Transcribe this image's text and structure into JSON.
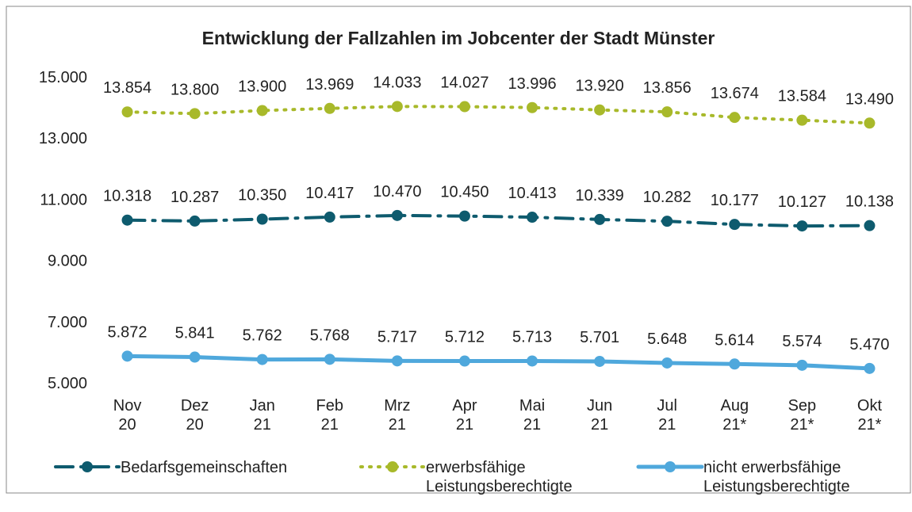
{
  "chart_data": {
    "type": "line",
    "title": "Entwicklung der Fallzahlen im Jobcenter der Stadt Münster",
    "categories": [
      "Nov 20",
      "Dez 20",
      "Jan 21",
      "Feb 21",
      "Mrz 21",
      "Apr 21",
      "Mai 21",
      "Jun 21",
      "Jul 21",
      "Aug 21*",
      "Sep 21*",
      "Okt 21*"
    ],
    "ylim": [
      5000,
      15000
    ],
    "yticks": [
      {
        "value": 5000,
        "label": "5.000"
      },
      {
        "value": 7000,
        "label": "7.000"
      },
      {
        "value": 9000,
        "label": "9.000"
      },
      {
        "value": 11000,
        "label": "11.000"
      },
      {
        "value": 13000,
        "label": "13.000"
      },
      {
        "value": 15000,
        "label": "15.000"
      }
    ],
    "grid": false,
    "legend": "bottom",
    "series": [
      {
        "name": "Bedarfsgemeinschaften",
        "color": "#0e5b6e",
        "style": "dashdot",
        "values": [
          10318,
          10287,
          10350,
          10417,
          10470,
          10450,
          10413,
          10339,
          10282,
          10177,
          10127,
          10138
        ],
        "value_labels": [
          "10.318",
          "10.287",
          "10.350",
          "10.417",
          "10.470",
          "10.450",
          "10.413",
          "10.339",
          "10.282",
          "10.177",
          "10.127",
          "10.138"
        ]
      },
      {
        "name": "erwerbsfähige Leistungsberechtigte",
        "color": "#a8b92a",
        "style": "dotted",
        "values": [
          13854,
          13800,
          13900,
          13969,
          14033,
          14027,
          13996,
          13920,
          13856,
          13674,
          13584,
          13490
        ],
        "value_labels": [
          "13.854",
          "13.800",
          "13.900",
          "13.969",
          "14.033",
          "14.027",
          "13.996",
          "13.920",
          "13.856",
          "13.674",
          "13.584",
          "13.490"
        ]
      },
      {
        "name": "nicht erwerbsfähige Leistungsberechtigte",
        "color": "#4fa8dc",
        "style": "solid",
        "values": [
          5872,
          5841,
          5762,
          5768,
          5717,
          5712,
          5713,
          5701,
          5648,
          5614,
          5574,
          5470
        ],
        "value_labels": [
          "5.872",
          "5.841",
          "5.762",
          "5.768",
          "5.717",
          "5.712",
          "5.713",
          "5.701",
          "5.648",
          "5.614",
          "5.574",
          "5.470"
        ]
      }
    ]
  }
}
